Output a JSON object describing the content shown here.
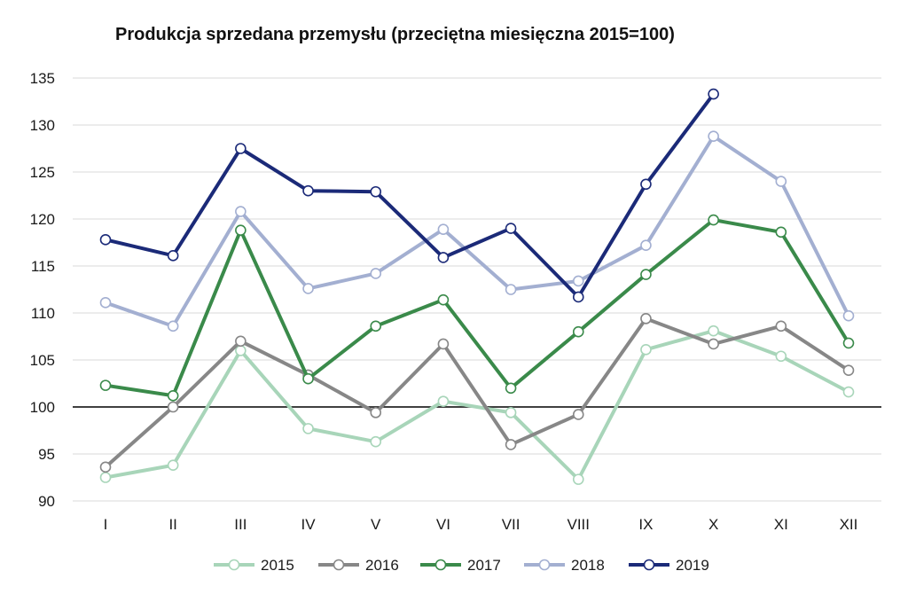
{
  "chart_data": {
    "type": "line",
    "title": "Produkcja sprzedana przemysłu (przeciętna miesięczna 2015=100)",
    "xlabel": "",
    "ylabel": "",
    "categories": [
      "I",
      "II",
      "III",
      "IV",
      "V",
      "VI",
      "VII",
      "VIII",
      "IX",
      "X",
      "XI",
      "XII"
    ],
    "ylim": [
      90,
      135
    ],
    "yticks": [
      "135",
      "130",
      "125",
      "120",
      "115",
      "110",
      "105",
      "100",
      "95",
      "90"
    ],
    "reference_line": 100,
    "grid": true,
    "legend_position": "bottom",
    "series": [
      {
        "name": "2015",
        "color": "#a8d5b9",
        "values": [
          92.5,
          93.8,
          106.0,
          97.7,
          96.3,
          100.6,
          99.4,
          92.3,
          106.1,
          108.1,
          105.4,
          101.6
        ]
      },
      {
        "name": "2016",
        "color": "#878787",
        "values": [
          93.6,
          100.0,
          107.0,
          103.4,
          99.4,
          106.7,
          96.0,
          99.2,
          109.4,
          106.7,
          108.6,
          103.9
        ]
      },
      {
        "name": "2017",
        "color": "#3a8a4a",
        "values": [
          102.3,
          101.2,
          118.8,
          103.0,
          108.6,
          111.4,
          102.0,
          108.0,
          114.1,
          119.9,
          118.6,
          106.8
        ]
      },
      {
        "name": "2018",
        "color": "#a3afd1",
        "values": [
          111.1,
          108.6,
          120.8,
          112.6,
          114.2,
          118.9,
          112.5,
          113.4,
          117.2,
          128.8,
          124.0,
          109.7
        ]
      },
      {
        "name": "2019",
        "color": "#1b2a78",
        "values": [
          117.8,
          116.1,
          127.5,
          123.0,
          122.9,
          115.9,
          119.0,
          111.7,
          123.7,
          133.3,
          null,
          null
        ]
      }
    ]
  }
}
